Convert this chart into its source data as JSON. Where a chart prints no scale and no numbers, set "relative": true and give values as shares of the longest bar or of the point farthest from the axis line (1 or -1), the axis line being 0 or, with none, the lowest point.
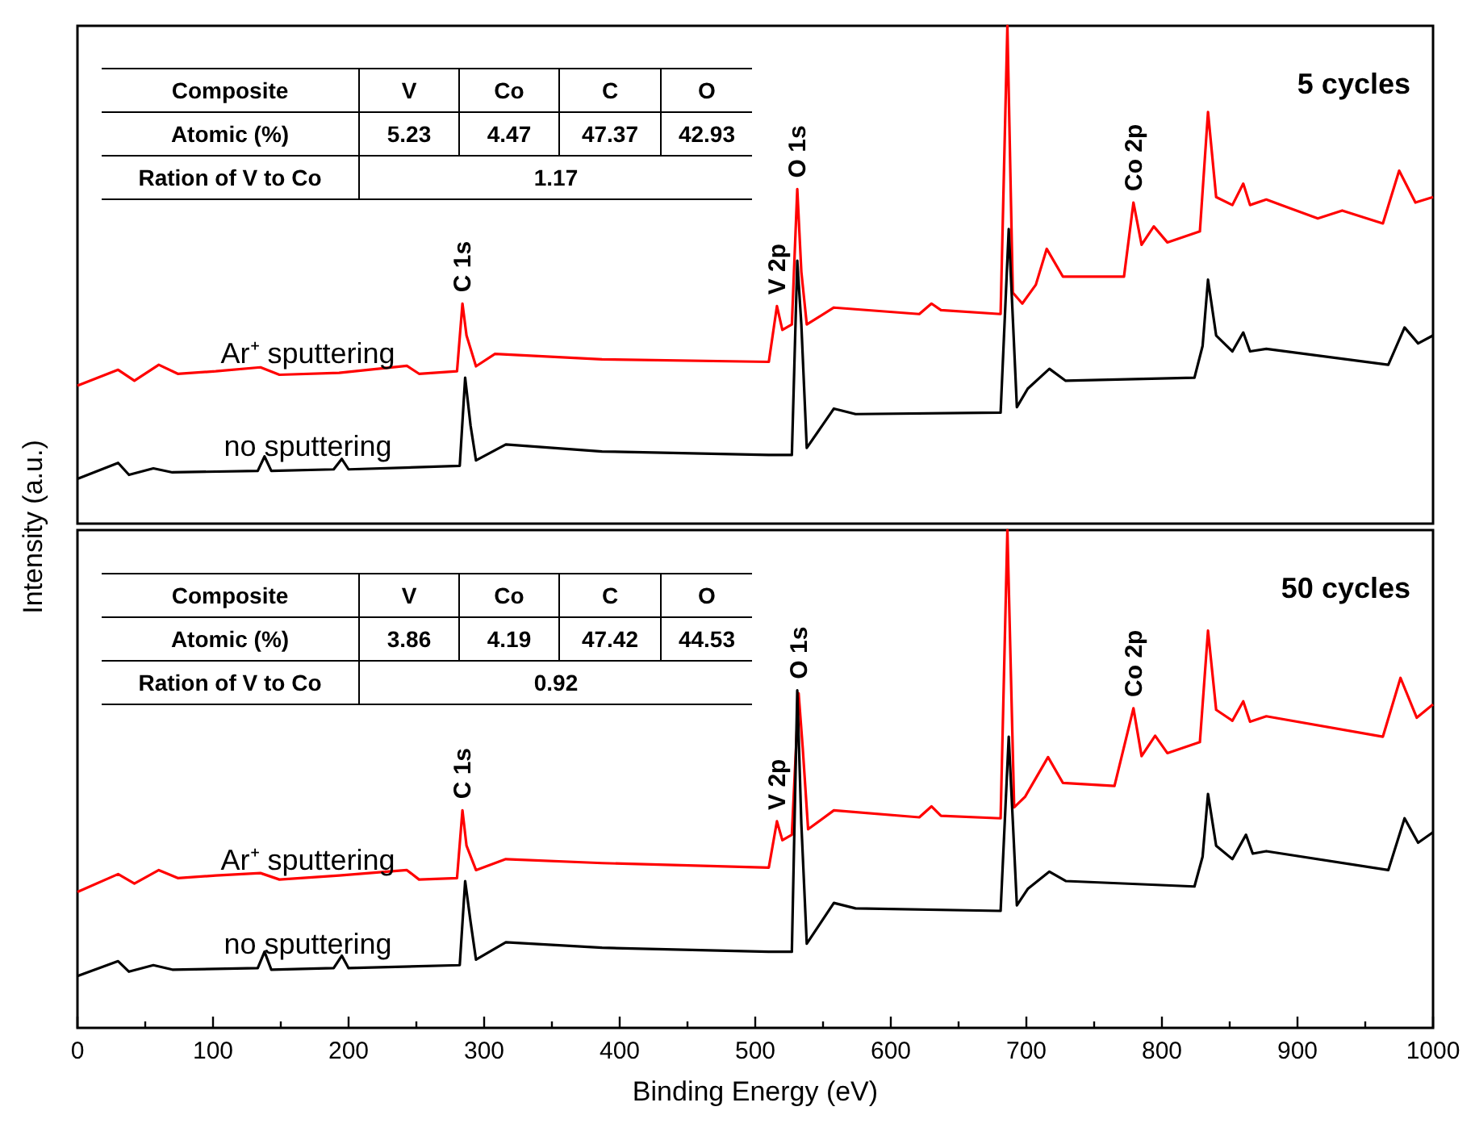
{
  "chart_data": [
    {
      "type": "line",
      "relative": true,
      "title": "5 cycles",
      "ylabel": "Intensity (a.u.)",
      "xlim": [
        0,
        1000
      ],
      "tick_labels": false,
      "annotations": [
        "Composite",
        "V",
        "Co",
        "C",
        "O",
        "Atomic (%)",
        "5.23",
        "4.47",
        "47.37",
        "42.93",
        "Ration of V to Co",
        "1.17",
        {
          "text": "C 1s",
          "x": 284,
          "y": 0.442
        },
        {
          "text": "V 2p",
          "x": 516,
          "y": 0.437
        },
        {
          "text": "O 1s",
          "x": 531,
          "y": 0.672
        },
        {
          "text": "Co 2p",
          "x": 779,
          "y": 0.645
        }
      ],
      "series": [
        {
          "name": "Ar⁺ sputtering",
          "color": "#ff0000",
          "x": [
            0,
            30,
            42,
            60,
            74,
            102,
            135,
            149,
            193,
            243,
            252,
            280,
            284,
            287,
            294,
            308,
            387,
            510,
            516,
            520,
            527,
            531,
            534,
            538,
            558,
            621,
            630,
            637,
            681,
            686,
            690,
            697,
            707,
            715,
            727,
            772,
            779,
            785,
            794,
            804,
            828,
            834,
            840,
            852,
            860,
            865,
            877,
            915,
            933,
            963,
            975,
            987,
            1000
          ],
          "values": [
            0.277,
            0.309,
            0.287,
            0.319,
            0.301,
            0.306,
            0.314,
            0.299,
            0.303,
            0.317,
            0.301,
            0.306,
            0.442,
            0.378,
            0.316,
            0.341,
            0.33,
            0.325,
            0.437,
            0.389,
            0.4,
            0.672,
            0.506,
            0.4,
            0.434,
            0.421,
            0.442,
            0.429,
            0.421,
            1.0,
            0.464,
            0.442,
            0.48,
            0.552,
            0.496,
            0.496,
            0.645,
            0.56,
            0.597,
            0.565,
            0.587,
            0.827,
            0.656,
            0.64,
            0.683,
            0.64,
            0.651,
            0.613,
            0.629,
            0.603,
            0.709,
            0.645,
            0.656
          ]
        },
        {
          "name": "no sputtering",
          "color": "#000000",
          "x": [
            0,
            30,
            38,
            56,
            70,
            133,
            138,
            143,
            189,
            195,
            200,
            282,
            286,
            290,
            294,
            316,
            387,
            510,
            527,
            531,
            534,
            538,
            558,
            574,
            681,
            687,
            693,
            701,
            717,
            729,
            824,
            830,
            834,
            840,
            852,
            860,
            865,
            877,
            967,
            979,
            989,
            1000
          ],
          "values": [
            0.09,
            0.122,
            0.098,
            0.111,
            0.103,
            0.106,
            0.135,
            0.106,
            0.109,
            0.13,
            0.109,
            0.116,
            0.293,
            0.197,
            0.127,
            0.159,
            0.145,
            0.138,
            0.138,
            0.528,
            0.4,
            0.152,
            0.231,
            0.22,
            0.223,
            0.592,
            0.234,
            0.271,
            0.311,
            0.287,
            0.293,
            0.357,
            0.49,
            0.378,
            0.346,
            0.384,
            0.346,
            0.351,
            0.319,
            0.394,
            0.362,
            0.378
          ]
        }
      ]
    },
    {
      "type": "line",
      "relative": true,
      "title": "50 cycles",
      "xlabel": "Binding Energy (eV)",
      "xlim": [
        0,
        1000
      ],
      "tick_labels": "x",
      "xticks": [
        0,
        {
          "value": 50,
          "label": null
        },
        100,
        {
          "value": 150,
          "label": null
        },
        200,
        {
          "value": 250,
          "label": null
        },
        300,
        {
          "value": 350,
          "label": null
        },
        400,
        {
          "value": 450,
          "label": null
        },
        500,
        {
          "value": 550,
          "label": null
        },
        600,
        {
          "value": 650,
          "label": null
        },
        700,
        {
          "value": 750,
          "label": null
        },
        800,
        {
          "value": 850,
          "label": null
        },
        900,
        {
          "value": 950,
          "label": null
        },
        1000
      ],
      "annotations": [
        "Composite",
        "V",
        "Co",
        "C",
        "O",
        "Atomic (%)",
        "3.86",
        "4.19",
        "47.42",
        "44.53",
        "Ration of V to Co",
        "0.92",
        {
          "text": "C 1s",
          "x": 284,
          "y": 0.437
        },
        {
          "text": "V 2p",
          "x": 516,
          "y": 0.415
        },
        {
          "text": "O 1s",
          "x": 532,
          "y": 0.678
        },
        {
          "text": "Co 2p",
          "x": 779,
          "y": 0.642
        }
      ],
      "series": [
        {
          "name": "Ar⁺ sputtering",
          "color": "#ff0000",
          "x": [
            0,
            30,
            42,
            60,
            74,
            102,
            135,
            149,
            193,
            243,
            252,
            280,
            284,
            287,
            294,
            316,
            387,
            510,
            516,
            520,
            527,
            532,
            535,
            539,
            558,
            621,
            630,
            637,
            681,
            686,
            691,
            699,
            716,
            727,
            765,
            779,
            785,
            795,
            804,
            828,
            834,
            840,
            852,
            860,
            865,
            877,
            963,
            976,
            988,
            1000
          ],
          "values": [
            0.273,
            0.309,
            0.29,
            0.317,
            0.301,
            0.306,
            0.311,
            0.298,
            0.306,
            0.317,
            0.298,
            0.301,
            0.437,
            0.366,
            0.317,
            0.339,
            0.331,
            0.322,
            0.415,
            0.377,
            0.388,
            0.672,
            0.563,
            0.399,
            0.437,
            0.423,
            0.445,
            0.426,
            0.421,
            1.0,
            0.443,
            0.464,
            0.544,
            0.492,
            0.486,
            0.642,
            0.546,
            0.587,
            0.552,
            0.574,
            0.798,
            0.639,
            0.617,
            0.656,
            0.615,
            0.626,
            0.585,
            0.703,
            0.623,
            0.65
          ]
        },
        {
          "name": "no sputtering",
          "color": "#000000",
          "x": [
            0,
            30,
            38,
            56,
            70,
            133,
            138,
            143,
            189,
            195,
            200,
            282,
            286,
            290,
            294,
            316,
            387,
            510,
            527,
            531,
            534,
            538,
            558,
            574,
            681,
            687,
            693,
            701,
            717,
            729,
            824,
            830,
            834,
            840,
            852,
            862,
            867,
            877,
            967,
            979,
            989,
            1000
          ],
          "values": [
            0.104,
            0.134,
            0.113,
            0.126,
            0.117,
            0.12,
            0.153,
            0.117,
            0.12,
            0.145,
            0.12,
            0.126,
            0.295,
            0.213,
            0.137,
            0.172,
            0.161,
            0.153,
            0.153,
            0.678,
            0.41,
            0.169,
            0.251,
            0.24,
            0.235,
            0.585,
            0.246,
            0.279,
            0.314,
            0.295,
            0.284,
            0.344,
            0.47,
            0.366,
            0.339,
            0.388,
            0.35,
            0.355,
            0.317,
            0.421,
            0.372,
            0.393
          ]
        }
      ]
    }
  ]
}
